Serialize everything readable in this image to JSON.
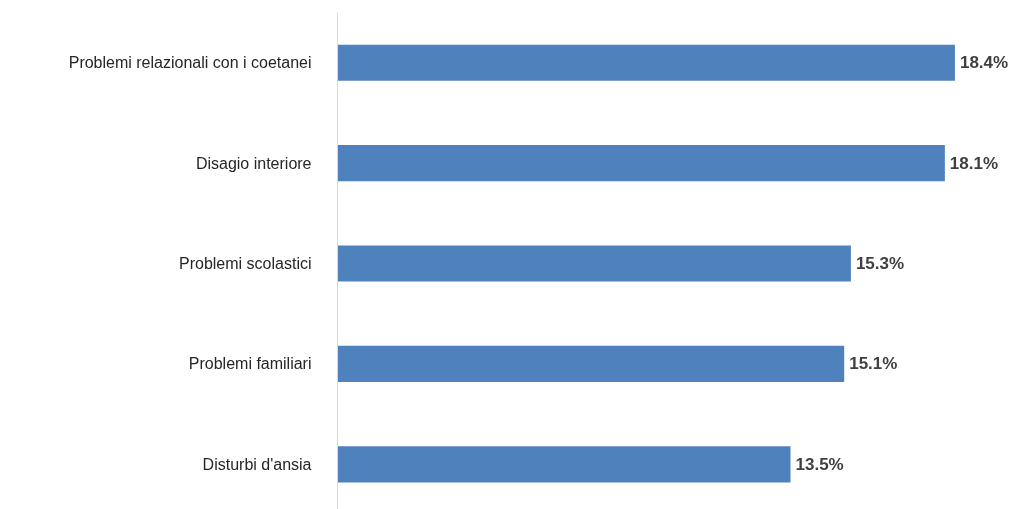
{
  "chart_data": {
    "type": "bar",
    "orientation": "horizontal",
    "categories": [
      "Problemi relazionali con i coetanei",
      "Disagio interiore",
      "Problemi scolastici",
      "Problemi familiari",
      "Disturbi d'ansia"
    ],
    "values": [
      18.4,
      18.1,
      15.3,
      15.1,
      13.5
    ],
    "value_labels": [
      "18.4%",
      "18.1%",
      "15.3%",
      "15.1%",
      "13.5%"
    ],
    "color": "#4f81bd",
    "grid": false
  }
}
